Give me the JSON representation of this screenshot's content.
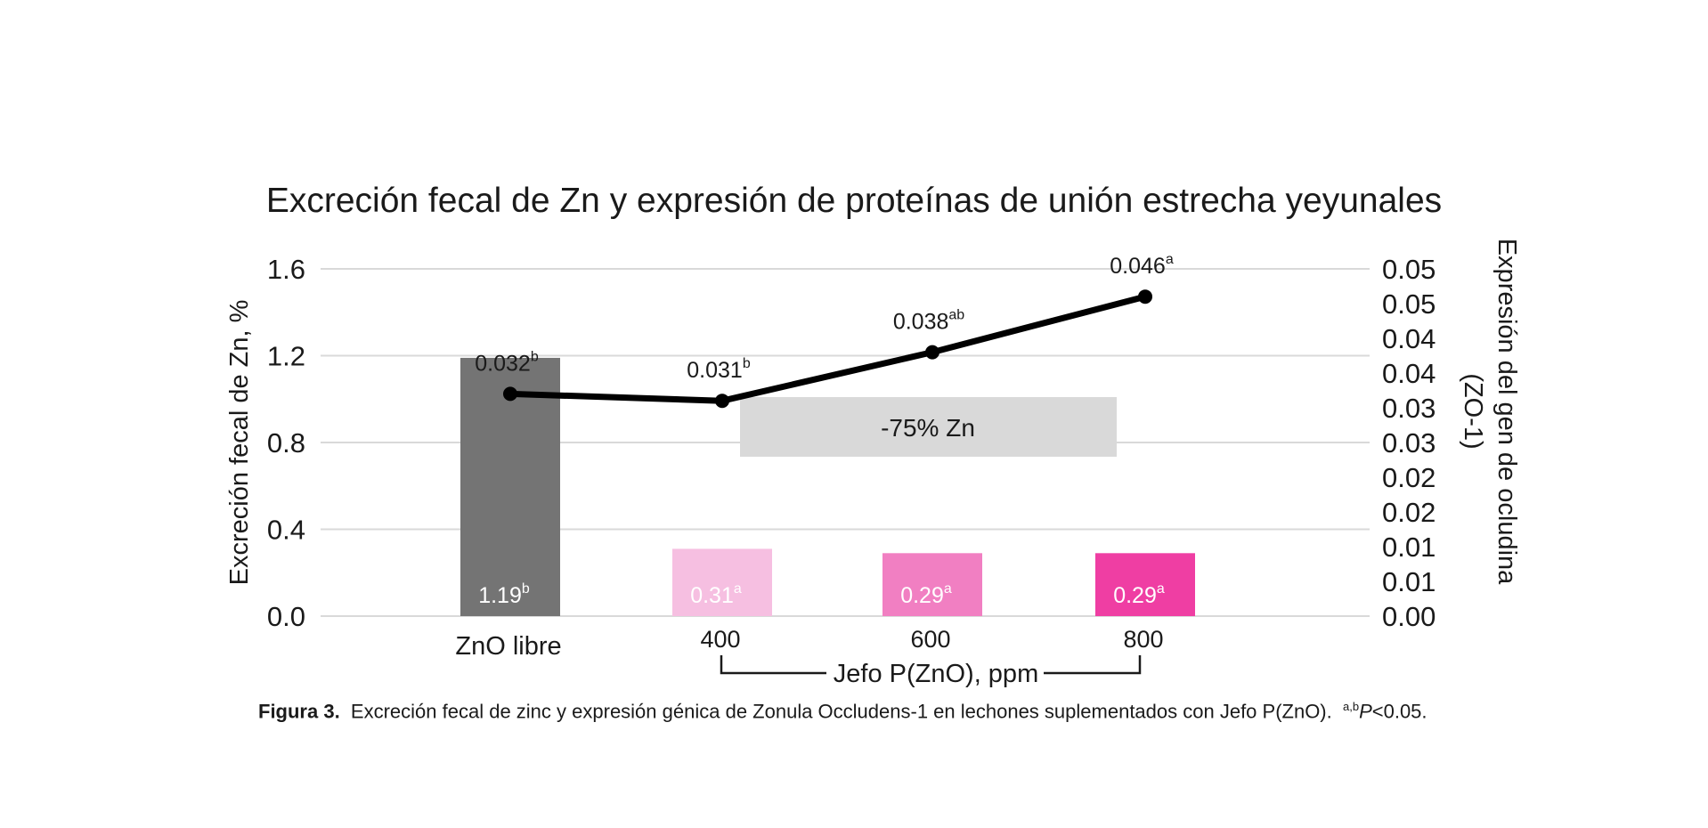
{
  "chart_data": {
    "type": "bar",
    "title": "Excreción fecal de Zn y expresión de proteínas de unión estrecha yeyunales",
    "categories": [
      "ZnO libre",
      "400",
      "600",
      "800"
    ],
    "x_group_label": "Jefo P(ZnO), ppm",
    "ylabel": "Excreción fecal de Zn, %",
    "y2label_lines": [
      "Expresión del gen de ocludina",
      "(ZO-1)"
    ],
    "ylim": [
      0,
      1.6
    ],
    "y_ticks": [
      "0.0",
      "0.4",
      "0.8",
      "1.2",
      "1.6"
    ],
    "y2lim": [
      0,
      0.05
    ],
    "y2_ticks": [
      "0.00",
      "0.01",
      "0.01",
      "0.02",
      "0.02",
      "0.03",
      "0.03",
      "0.04",
      "0.04",
      "0.05",
      "0.05"
    ],
    "grid": true,
    "bars": {
      "name": "Excreción fecal de Zn",
      "values": [
        1.19,
        0.31,
        0.29,
        0.29
      ],
      "labels": [
        "1.19",
        "0.31",
        "0.29",
        "0.29"
      ],
      "superscripts": [
        "b",
        "a",
        "a",
        "a"
      ],
      "colors": [
        "#747474",
        "#f6bfe1",
        "#f17fc2",
        "#ef3ea3"
      ]
    },
    "line": {
      "name": "Expresión del gen de ocludina (ZO-1)",
      "values": [
        0.032,
        0.031,
        0.038,
        0.046
      ],
      "labels": [
        "0.032",
        "0.031",
        "0.038",
        "0.046"
      ],
      "superscripts": [
        "b",
        "b",
        "ab",
        "a"
      ],
      "color": "#000000"
    },
    "annotation": {
      "text": "-75% Zn",
      "color": "#d9d9d9"
    }
  },
  "caption": {
    "label": "Figura 3.",
    "text": "Excreción fecal de zinc y expresión génica de Zonula Occludens-1 en lechones suplementados con Jefo P(ZnO).",
    "sig_superscript": "a,b",
    "sig_p": "P",
    "sig_value": "<0.05."
  }
}
